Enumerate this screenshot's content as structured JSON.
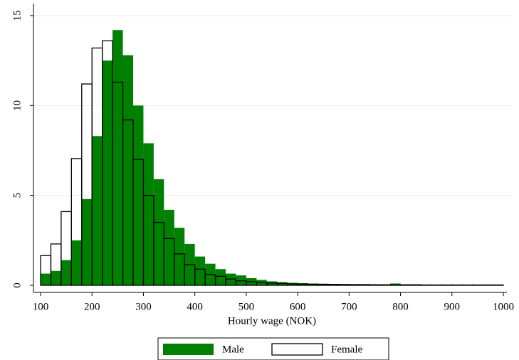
{
  "chart_data": {
    "type": "histogram",
    "x_label": "Hourly wage (NOK)",
    "bins": [
      100,
      120,
      140,
      160,
      180,
      200,
      220,
      240,
      260,
      280,
      300,
      320,
      340,
      360,
      380,
      400,
      420,
      440,
      460,
      480,
      500,
      520,
      540,
      560,
      580,
      600,
      620,
      640,
      660,
      680,
      700,
      720,
      740,
      760,
      780,
      800,
      820,
      840,
      860,
      880,
      900,
      920,
      940,
      960,
      980,
      1000
    ],
    "series": [
      {
        "name": "Male",
        "color": "#008000",
        "style": "filled",
        "values": [
          0.65,
          0.8,
          1.4,
          2.5,
          4.8,
          8.3,
          12.5,
          14.2,
          12.8,
          10.0,
          7.9,
          5.9,
          4.2,
          3.2,
          2.3,
          1.6,
          1.2,
          0.9,
          0.65,
          0.55,
          0.4,
          0.3,
          0.22,
          0.18,
          0.14,
          0.12,
          0.1,
          0.09,
          0.08,
          0.07,
          0.06,
          0.05,
          0.05,
          0.04,
          0.1,
          0.04,
          0.03,
          0.03,
          0.03,
          0.03,
          0.03,
          0.02,
          0.02,
          0.02,
          0.02
        ]
      },
      {
        "name": "Female",
        "color": "#000000",
        "style": "outline",
        "values": [
          1.65,
          2.3,
          4.1,
          7.05,
          11.2,
          13.2,
          13.6,
          11.3,
          9.2,
          7.0,
          5.0,
          3.5,
          2.6,
          1.75,
          1.15,
          0.9,
          0.6,
          0.5,
          0.35,
          0.25,
          0.2,
          0.15,
          0.12,
          0.1,
          0.08,
          0.07,
          0.06,
          0.05,
          0.05,
          0.04,
          0.04,
          0.04,
          0.03,
          0.03,
          0.03,
          0.03,
          0.03,
          0.02,
          0.02,
          0.02,
          0.02,
          0.02,
          0.02,
          0.02,
          0.02
        ]
      }
    ],
    "xlim": [
      100,
      1000
    ],
    "xticks": [
      100,
      200,
      300,
      400,
      500,
      600,
      700,
      800,
      900,
      1000
    ],
    "ylim": [
      0,
      15
    ],
    "yticks": [
      0,
      5,
      10,
      15
    ],
    "grid": true,
    "legend": "bottom"
  }
}
